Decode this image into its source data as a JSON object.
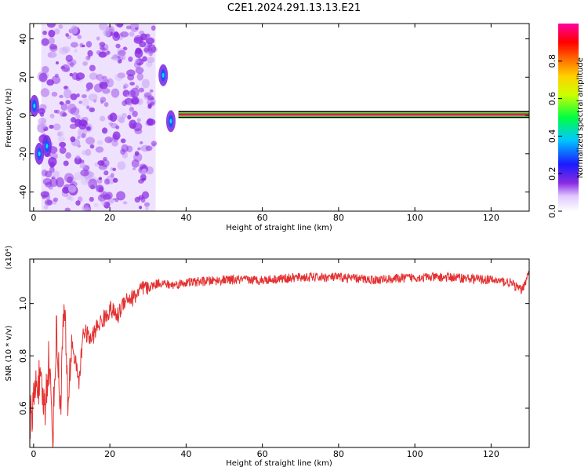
{
  "title": "C2E1.2024.291.13.13.E21",
  "colors": {
    "snr_line": "#e53030",
    "blob": "#8a2be2",
    "background": "#ffffff"
  },
  "chart_data": [
    {
      "type": "heatmap",
      "title": "C2E1.2024.291.13.13.E21",
      "xlabel": "Height of straight line (km)",
      "ylabel": "Frequency (Hz)",
      "xlim": [
        -1,
        130
      ],
      "ylim": [
        -50,
        48
      ],
      "xticks": [
        0,
        20,
        40,
        60,
        80,
        100,
        120
      ],
      "yticks": [
        -40,
        -20,
        0,
        20,
        40
      ],
      "colorbar": {
        "label": "Normalized spectral amplitude",
        "ticks": [
          "0.0",
          "0.2",
          "0.4",
          "0.6",
          "0.8"
        ],
        "range": [
          0,
          1
        ],
        "colormap": "rainbow"
      },
      "noise_band_x": [
        2,
        32
      ],
      "features": [
        {
          "x": 0.2,
          "freq": 5,
          "amplitude": 0.5
        },
        {
          "x": 1.5,
          "freq": -20,
          "amplitude": 0.5
        },
        {
          "x": 3.5,
          "freq": -16,
          "amplitude": 0.3
        },
        {
          "x": 34,
          "freq": 21,
          "amplitude": 0.5
        },
        {
          "x": 36,
          "freq": -3,
          "amplitude": 0.6
        }
      ],
      "ridge": {
        "freq": 0.5,
        "x_start": 38,
        "x_end": 130,
        "amplitude": 1.0
      }
    },
    {
      "type": "line",
      "title": "",
      "xlabel": "Height of straight line (km)",
      "ylabel": "SNR (10 * v/v)",
      "y_multiplier": "(x10⁴)",
      "xlim": [
        -1,
        130
      ],
      "ylim": [
        0.45,
        1.17
      ],
      "xticks": [
        0,
        20,
        40,
        60,
        80,
        100,
        120
      ],
      "yticks": [
        0.6,
        0.8,
        1.0
      ],
      "anchors": [
        [
          -1,
          0.55
        ],
        [
          0,
          0.62
        ],
        [
          1,
          0.72
        ],
        [
          2,
          0.66
        ],
        [
          3,
          0.6
        ],
        [
          4,
          0.8
        ],
        [
          5,
          0.5
        ],
        [
          6,
          0.9
        ],
        [
          7,
          0.6
        ],
        [
          8,
          1.0
        ],
        [
          9,
          0.62
        ],
        [
          10,
          0.85
        ],
        [
          12,
          0.7
        ],
        [
          13,
          0.9
        ],
        [
          15,
          0.86
        ],
        [
          17,
          0.92
        ],
        [
          19,
          0.95
        ],
        [
          20,
          0.98
        ],
        [
          22,
          0.95
        ],
        [
          24,
          1.02
        ],
        [
          26,
          1.02
        ],
        [
          28,
          1.05
        ],
        [
          30,
          1.06
        ],
        [
          33,
          1.08
        ],
        [
          36,
          1.07
        ],
        [
          40,
          1.08
        ],
        [
          50,
          1.09
        ],
        [
          60,
          1.09
        ],
        [
          70,
          1.1
        ],
        [
          80,
          1.1
        ],
        [
          90,
          1.09
        ],
        [
          100,
          1.1
        ],
        [
          110,
          1.1
        ],
        [
          120,
          1.09
        ],
        [
          125,
          1.08
        ],
        [
          128,
          1.05
        ],
        [
          130,
          1.12
        ]
      ]
    }
  ]
}
